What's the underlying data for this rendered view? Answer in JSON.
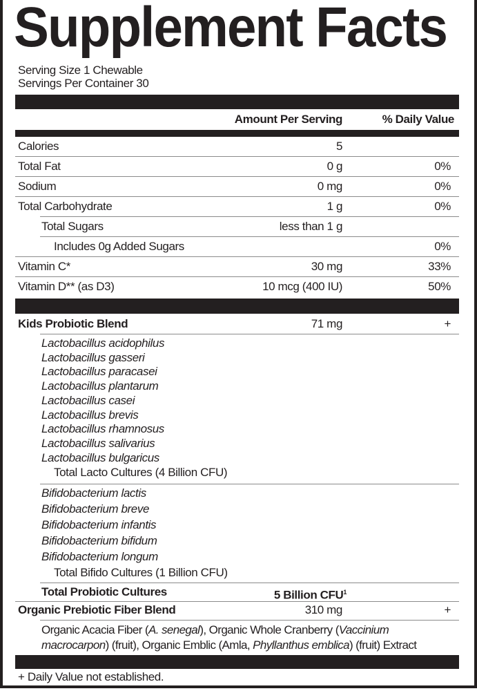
{
  "title": "Supplement Facts",
  "serving_size": "Serving Size 1 Chewable",
  "servings_per_container": "Servings Per Container 30",
  "header": {
    "amount": "Amount Per Serving",
    "dv": "% Daily Value"
  },
  "nutrients": [
    {
      "name": "Calories",
      "amount": "5",
      "dv": "",
      "indent": 0
    },
    {
      "name": "Total Fat",
      "amount": "0 g",
      "dv": "0%",
      "indent": 0
    },
    {
      "name": "Sodium",
      "amount": "0 mg",
      "dv": "0%",
      "indent": 0
    },
    {
      "name": "Total Carbohydrate",
      "amount": "1 g",
      "dv": "0%",
      "indent": 0
    },
    {
      "name": "Total Sugars",
      "amount": "less than 1 g",
      "dv": "",
      "indent": 1
    },
    {
      "name": "Includes 0g Added Sugars",
      "amount": "",
      "dv": "0%",
      "indent": 2
    },
    {
      "name": "Vitamin C*",
      "amount": "30 mg",
      "dv": "33%",
      "indent": 0
    },
    {
      "name": "Vitamin D** (as D3)",
      "amount": "10 mcg (400 IU)",
      "dv": "50%",
      "indent": 0
    }
  ],
  "probiotic_blend": {
    "name": "Kids Probiotic Blend",
    "amount": "71 mg",
    "dv": "+",
    "lacto": [
      "Lactobacillus acidophilus",
      "Lactobacillus gasseri",
      "Lactobacillus paracasei",
      "Lactobacillus plantarum",
      "Lactobacillus casei",
      "Lactobacillus brevis",
      "Lactobacillus rhamnosus",
      "Lactobacillus salivarius",
      "Lactobacillus bulgaricus"
    ],
    "lacto_total": "Total Lacto Cultures  (4 Billion CFU)",
    "bifido": [
      "Bifidobacterium lactis",
      "Bifidobacterium breve",
      "Bifidobacterium infantis",
      "Bifidobacterium bifidum",
      "Bifidobacterium longum"
    ],
    "bifido_total": "Total Bifido Cultures  (1 Billion CFU)",
    "total_label": "Total Probiotic Cultures",
    "total_amount": "5 Billion CFU",
    "total_sup": "1"
  },
  "prebiotic_blend": {
    "name": "Organic Prebiotic Fiber Blend",
    "amount": "310 mg",
    "dv": "+",
    "ingredients_line1": [
      {
        "text": "Organic Acacia Fiber (",
        "italic": false
      },
      {
        "text": "A. senegal",
        "italic": true
      },
      {
        "text": "), Organic Whole Cranberry (",
        "italic": false
      },
      {
        "text": "Vaccinium",
        "italic": true
      }
    ],
    "ingredients_line2": [
      {
        "text": "macrocarpon",
        "italic": true
      },
      {
        "text": ") (fruit), Organic Emblic (Amla, ",
        "italic": false
      },
      {
        "text": "Phyllanthus emblica",
        "italic": true
      },
      {
        "text": ") (fruit) Extract",
        "italic": false
      }
    ]
  },
  "footnote": "+ Daily Value not established."
}
